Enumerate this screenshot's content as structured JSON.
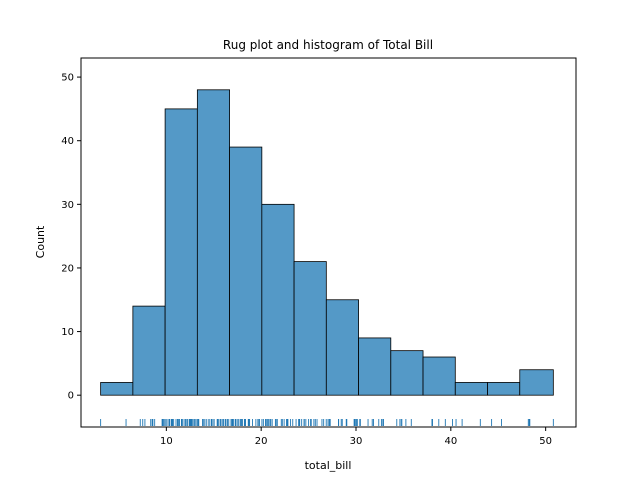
{
  "chart_data": {
    "type": "bar",
    "title": "Rug plot and histogram of Total Bill",
    "xlabel": "total_bill",
    "ylabel": "Count",
    "xlim": [
      1.0,
      53.2
    ],
    "ylim": [
      -5,
      53
    ],
    "xticks": [
      10,
      20,
      30,
      40,
      50
    ],
    "yticks": [
      0,
      10,
      20,
      30,
      40,
      50
    ],
    "bins": [
      {
        "start": 3.07,
        "end": 6.47,
        "count": 2
      },
      {
        "start": 6.47,
        "end": 9.87,
        "count": 14
      },
      {
        "start": 9.87,
        "end": 13.27,
        "count": 45
      },
      {
        "start": 13.27,
        "end": 16.67,
        "count": 48
      },
      {
        "start": 16.67,
        "end": 20.07,
        "count": 39
      },
      {
        "start": 20.07,
        "end": 23.47,
        "count": 30
      },
      {
        "start": 23.47,
        "end": 26.87,
        "count": 21
      },
      {
        "start": 26.87,
        "end": 30.27,
        "count": 15
      },
      {
        "start": 30.27,
        "end": 33.67,
        "count": 9
      },
      {
        "start": 33.67,
        "end": 37.07,
        "count": 7
      },
      {
        "start": 37.07,
        "end": 40.47,
        "count": 6
      },
      {
        "start": 40.47,
        "end": 43.87,
        "count": 2
      },
      {
        "start": 43.87,
        "end": 47.27,
        "count": 2
      },
      {
        "start": 47.27,
        "end": 50.81,
        "count": 4
      }
    ],
    "rug": [
      3.07,
      5.75,
      7.25,
      7.51,
      7.74,
      8.35,
      8.51,
      8.52,
      8.58,
      8.77,
      9.55,
      9.6,
      9.68,
      9.78,
      9.94,
      10.07,
      10.27,
      10.29,
      10.33,
      10.34,
      10.51,
      10.59,
      10.63,
      10.65,
      10.77,
      11.02,
      11.17,
      11.24,
      11.35,
      11.38,
      11.59,
      11.61,
      11.69,
      11.87,
      12.02,
      12.16,
      12.26,
      12.43,
      12.46,
      12.54,
      12.6,
      12.66,
      12.74,
      12.9,
      13.0,
      13.13,
      13.27,
      13.37,
      13.42,
      13.81,
      13.94,
      14.07,
      14.26,
      14.48,
      14.52,
      14.73,
      14.78,
      14.83,
      15.01,
      15.04,
      15.36,
      15.42,
      15.53,
      15.69,
      15.77,
      15.95,
      16.04,
      16.21,
      16.29,
      16.45,
      16.58,
      16.82,
      16.93,
      16.99,
      17.07,
      17.26,
      17.31,
      17.46,
      17.59,
      17.78,
      17.81,
      17.92,
      18.04,
      18.24,
      18.28,
      18.35,
      18.64,
      18.71,
      18.78,
      19.08,
      19.44,
      19.65,
      19.77,
      19.82,
      20.08,
      20.23,
      20.45,
      20.53,
      20.65,
      20.76,
      20.92,
      21.01,
      21.16,
      21.5,
      21.58,
      21.7,
      22.12,
      22.23,
      22.42,
      22.67,
      22.75,
      22.82,
      23.1,
      23.33,
      23.68,
      23.95,
      24.01,
      24.06,
      24.27,
      24.52,
      24.55,
      24.71,
      25.0,
      25.21,
      25.28,
      25.56,
      25.71,
      25.89,
      26.41,
      26.59,
      26.86,
      27.05,
      27.18,
      27.2,
      27.28,
      28.15,
      28.17,
      28.44,
      28.55,
      28.97,
      29.03,
      29.8,
      29.85,
      29.93,
      30.06,
      30.14,
      30.4,
      30.46,
      31.27,
      31.71,
      31.85,
      32.4,
      32.68,
      32.83,
      32.9,
      34.3,
      34.63,
      34.65,
      34.81,
      34.83,
      35.26,
      35.83,
      38.01,
      38.07,
      38.73,
      39.42,
      40.17,
      40.55,
      41.19,
      43.11,
      44.3,
      45.35,
      48.17,
      48.27,
      48.33,
      50.81
    ],
    "bar_color": "#5499c7",
    "grid": false,
    "legend": "none"
  }
}
